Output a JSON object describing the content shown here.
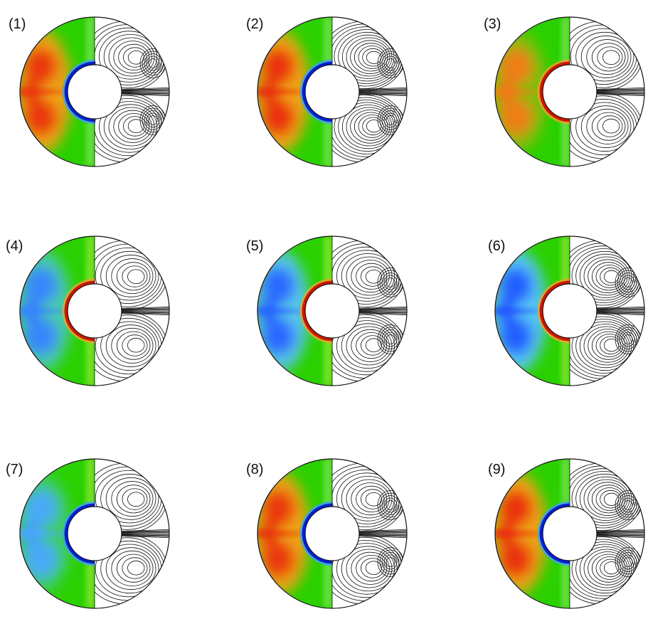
{
  "figure": {
    "panels": [
      {
        "label": "(1)",
        "field": "warm",
        "intensity": 0.85,
        "inner_rim": "blue",
        "contour_style": "two-lobe-dense-midplane"
      },
      {
        "label": "(2)",
        "field": "warm",
        "intensity": 0.9,
        "inner_rim": "blue",
        "contour_style": "many-cells-dense"
      },
      {
        "label": "(3)",
        "field": "warm",
        "intensity": 0.3,
        "inner_rim": "red",
        "contour_style": "broad-cells"
      },
      {
        "label": "(4)",
        "field": "cool",
        "intensity": 0.55,
        "inner_rim": "red",
        "contour_style": "broad-cells"
      },
      {
        "label": "(5)",
        "field": "cool",
        "intensity": 0.8,
        "inner_rim": "red",
        "contour_style": "two-lobe-dense-midplane"
      },
      {
        "label": "(6)",
        "field": "cool",
        "intensity": 0.9,
        "inner_rim": "red",
        "contour_style": "many-cells-dense"
      },
      {
        "label": "(7)",
        "field": "cool",
        "intensity": 0.25,
        "inner_rim": "blue",
        "contour_style": "broad-cells"
      },
      {
        "label": "(8)",
        "field": "warm",
        "intensity": 0.85,
        "inner_rim": "blue",
        "contour_style": "two-lobe-dense-midplane"
      },
      {
        "label": "(9)",
        "field": "warm",
        "intensity": 0.9,
        "inner_rim": "blue",
        "contour_style": "many-cells-dense"
      }
    ]
  },
  "colors": {
    "background": "#2bd000",
    "warm_peak": "#e8200a",
    "warm_mid": "#f7a218",
    "cool_peak": "#1a4cff",
    "cool_mid": "#5ac6ff",
    "rim_blue": "#0a1fd0",
    "rim_red": "#c81808",
    "contour": "#111111"
  }
}
